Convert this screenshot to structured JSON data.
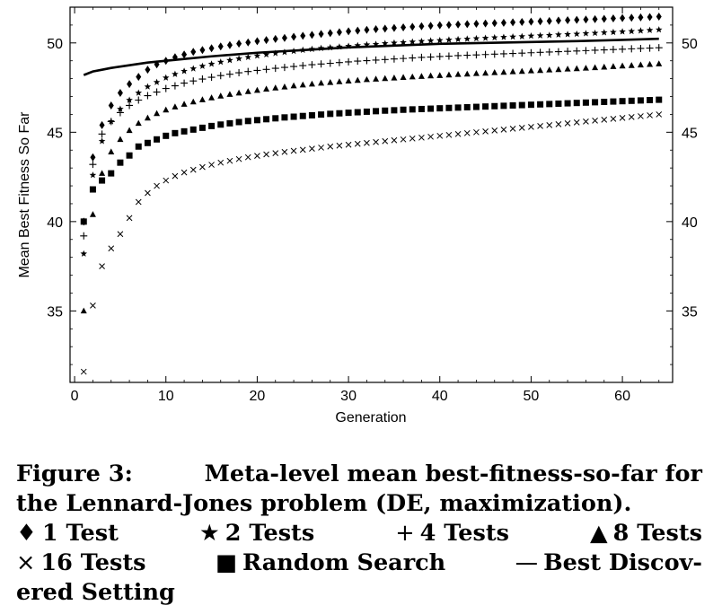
{
  "chart_data": {
    "type": "scatter",
    "title": "",
    "xlabel": "Generation",
    "ylabel": "Mean Best Fitness So Far",
    "xlim": [
      -0.5,
      65.5
    ],
    "ylim": [
      31,
      52
    ],
    "x_ticks": [
      0,
      10,
      20,
      30,
      40,
      50,
      60
    ],
    "y_ticks": [
      35,
      40,
      45,
      50
    ],
    "grid": false,
    "legend": "below",
    "series": [
      {
        "name": "1 Test",
        "marker": "diamond",
        "x": [
          1,
          2,
          3,
          4,
          5,
          6,
          7,
          8,
          9,
          10,
          11,
          12,
          13,
          14,
          15,
          16,
          17,
          18,
          19,
          20,
          21,
          22,
          23,
          24,
          25,
          26,
          27,
          28,
          29,
          30,
          31,
          32,
          33,
          34,
          35,
          36,
          37,
          38,
          39,
          40,
          41,
          42,
          43,
          44,
          45,
          46,
          47,
          48,
          49,
          50,
          51,
          52,
          53,
          54,
          55,
          56,
          57,
          58,
          59,
          60,
          61,
          62,
          63,
          64
        ],
        "y": [
          40.0,
          43.6,
          45.4,
          46.5,
          47.2,
          47.7,
          48.1,
          48.5,
          48.8,
          49.0,
          49.2,
          49.35,
          49.5,
          49.6,
          49.7,
          49.8,
          49.88,
          49.96,
          50.03,
          50.1,
          50.16,
          50.22,
          50.28,
          50.34,
          50.4,
          50.45,
          50.5,
          50.55,
          50.6,
          50.65,
          50.69,
          50.73,
          50.77,
          50.8,
          50.84,
          50.87,
          50.9,
          50.93,
          50.96,
          50.99,
          51.01,
          51.03,
          51.05,
          51.07,
          51.09,
          51.11,
          51.13,
          51.15,
          51.17,
          51.19,
          51.21,
          51.23,
          51.25,
          51.27,
          51.29,
          51.31,
          51.33,
          51.35,
          51.37,
          51.39,
          51.41,
          51.43,
          51.45,
          51.47
        ]
      },
      {
        "name": "2 Tests",
        "marker": "star",
        "x": [
          1,
          2,
          3,
          4,
          5,
          6,
          7,
          8,
          9,
          10,
          11,
          12,
          13,
          14,
          15,
          16,
          17,
          18,
          19,
          20,
          21,
          22,
          23,
          24,
          25,
          26,
          27,
          28,
          29,
          30,
          31,
          32,
          33,
          34,
          35,
          36,
          37,
          38,
          39,
          40,
          41,
          42,
          43,
          44,
          45,
          46,
          47,
          48,
          49,
          50,
          51,
          52,
          53,
          54,
          55,
          56,
          57,
          58,
          59,
          60,
          61,
          62,
          63,
          64
        ],
        "y": [
          38.2,
          42.6,
          44.5,
          45.6,
          46.3,
          46.8,
          47.2,
          47.55,
          47.8,
          48.05,
          48.25,
          48.42,
          48.56,
          48.7,
          48.82,
          48.93,
          49.03,
          49.12,
          49.2,
          49.28,
          49.35,
          49.42,
          49.48,
          49.54,
          49.6,
          49.65,
          49.7,
          49.74,
          49.78,
          49.82,
          49.86,
          49.9,
          49.93,
          49.97,
          50.0,
          50.03,
          50.06,
          50.09,
          50.12,
          50.14,
          50.17,
          50.2,
          50.22,
          50.25,
          50.27,
          50.3,
          50.32,
          50.34,
          50.36,
          50.39,
          50.41,
          50.43,
          50.46,
          50.48,
          50.5,
          50.53,
          50.55,
          50.58,
          50.6,
          50.63,
          50.65,
          50.68,
          50.71,
          50.74
        ]
      },
      {
        "name": "4 Tests",
        "marker": "plus",
        "x": [
          1,
          2,
          3,
          4,
          5,
          6,
          7,
          8,
          9,
          10,
          11,
          12,
          13,
          14,
          15,
          16,
          17,
          18,
          19,
          20,
          21,
          22,
          23,
          24,
          25,
          26,
          27,
          28,
          29,
          30,
          31,
          32,
          33,
          34,
          35,
          36,
          37,
          38,
          39,
          40,
          41,
          42,
          43,
          44,
          45,
          46,
          47,
          48,
          49,
          50,
          51,
          52,
          53,
          54,
          55,
          56,
          57,
          58,
          59,
          60,
          61,
          62,
          63,
          64
        ],
        "y": [
          39.2,
          43.2,
          44.9,
          45.6,
          46.1,
          46.5,
          46.8,
          47.05,
          47.25,
          47.45,
          47.6,
          47.75,
          47.87,
          47.98,
          48.08,
          48.17,
          48.25,
          48.33,
          48.4,
          48.46,
          48.52,
          48.58,
          48.63,
          48.68,
          48.73,
          48.78,
          48.82,
          48.86,
          48.9,
          48.94,
          48.98,
          49.01,
          49.04,
          49.07,
          49.1,
          49.13,
          49.16,
          49.19,
          49.21,
          49.24,
          49.26,
          49.29,
          49.31,
          49.33,
          49.35,
          49.37,
          49.39,
          49.41,
          49.43,
          49.45,
          49.47,
          49.49,
          49.51,
          49.53,
          49.55,
          49.57,
          49.59,
          49.61,
          49.63,
          49.65,
          49.67,
          49.69,
          49.71,
          49.73
        ]
      },
      {
        "name": "8 Tests",
        "marker": "triangle",
        "x": [
          1,
          2,
          3,
          4,
          5,
          6,
          7,
          8,
          9,
          10,
          11,
          12,
          13,
          14,
          15,
          16,
          17,
          18,
          19,
          20,
          21,
          22,
          23,
          24,
          25,
          26,
          27,
          28,
          29,
          30,
          31,
          32,
          33,
          34,
          35,
          36,
          37,
          38,
          39,
          40,
          41,
          42,
          43,
          44,
          45,
          46,
          47,
          48,
          49,
          50,
          51,
          52,
          53,
          54,
          55,
          56,
          57,
          58,
          59,
          60,
          61,
          62,
          63,
          64
        ],
        "y": [
          35.0,
          40.4,
          42.7,
          43.9,
          44.6,
          45.1,
          45.5,
          45.8,
          46.05,
          46.25,
          46.42,
          46.57,
          46.7,
          46.82,
          46.93,
          47.03,
          47.12,
          47.2,
          47.28,
          47.35,
          47.42,
          47.48,
          47.54,
          47.6,
          47.65,
          47.7,
          47.75,
          47.79,
          47.83,
          47.87,
          47.91,
          47.95,
          47.98,
          48.01,
          48.04,
          48.07,
          48.1,
          48.13,
          48.16,
          48.18,
          48.21,
          48.24,
          48.26,
          48.29,
          48.31,
          48.34,
          48.36,
          48.39,
          48.41,
          48.44,
          48.46,
          48.49,
          48.51,
          48.54,
          48.56,
          48.59,
          48.62,
          48.65,
          48.68,
          48.71,
          48.74,
          48.77,
          48.8,
          48.83
        ]
      },
      {
        "name": "16 Tests",
        "marker": "x",
        "x": [
          1,
          2,
          3,
          4,
          5,
          6,
          7,
          8,
          9,
          10,
          11,
          12,
          13,
          14,
          15,
          16,
          17,
          18,
          19,
          20,
          21,
          22,
          23,
          24,
          25,
          26,
          27,
          28,
          29,
          30,
          31,
          32,
          33,
          34,
          35,
          36,
          37,
          38,
          39,
          40,
          41,
          42,
          43,
          44,
          45,
          46,
          47,
          48,
          49,
          50,
          51,
          52,
          53,
          54,
          55,
          56,
          57,
          58,
          59,
          60,
          61,
          62,
          63,
          64
        ],
        "y": [
          31.6,
          35.3,
          37.5,
          38.5,
          39.3,
          40.2,
          41.1,
          41.6,
          42.0,
          42.3,
          42.55,
          42.75,
          42.9,
          43.05,
          43.18,
          43.3,
          43.4,
          43.5,
          43.6,
          43.68,
          43.76,
          43.83,
          43.9,
          43.96,
          44.02,
          44.08,
          44.14,
          44.2,
          44.25,
          44.3,
          44.35,
          44.4,
          44.45,
          44.5,
          44.55,
          44.6,
          44.65,
          44.7,
          44.75,
          44.8,
          44.85,
          44.9,
          44.95,
          45.0,
          45.05,
          45.1,
          45.15,
          45.2,
          45.25,
          45.3,
          45.35,
          45.4,
          45.45,
          45.5,
          45.55,
          45.6,
          45.65,
          45.7,
          45.75,
          45.8,
          45.85,
          45.9,
          45.95,
          46.0
        ]
      },
      {
        "name": "Random Search",
        "marker": "square",
        "x": [
          1,
          2,
          3,
          4,
          5,
          6,
          7,
          8,
          9,
          10,
          11,
          12,
          13,
          14,
          15,
          16,
          17,
          18,
          19,
          20,
          21,
          22,
          23,
          24,
          25,
          26,
          27,
          28,
          29,
          30,
          31,
          32,
          33,
          34,
          35,
          36,
          37,
          38,
          39,
          40,
          41,
          42,
          43,
          44,
          45,
          46,
          47,
          48,
          49,
          50,
          51,
          52,
          53,
          54,
          55,
          56,
          57,
          58,
          59,
          60,
          61,
          62,
          63,
          64
        ],
        "y": [
          40.0,
          41.8,
          42.3,
          42.7,
          43.3,
          43.7,
          44.2,
          44.4,
          44.6,
          44.8,
          44.95,
          45.05,
          45.15,
          45.25,
          45.35,
          45.43,
          45.5,
          45.57,
          45.63,
          45.68,
          45.73,
          45.78,
          45.83,
          45.87,
          45.91,
          45.95,
          45.99,
          46.03,
          46.06,
          46.09,
          46.12,
          46.15,
          46.18,
          46.21,
          46.23,
          46.26,
          46.28,
          46.3,
          46.32,
          46.34,
          46.36,
          46.38,
          46.4,
          46.42,
          46.44,
          46.46,
          46.48,
          46.5,
          46.52,
          46.54,
          46.56,
          46.58,
          46.6,
          46.62,
          46.64,
          46.66,
          46.68,
          46.7,
          46.72,
          46.74,
          46.76,
          46.78,
          46.8,
          46.82
        ]
      },
      {
        "name": "Best Discovered Setting",
        "marker": "line",
        "x": [
          1,
          2,
          3,
          4,
          6,
          8,
          10,
          12,
          15,
          20,
          25,
          30,
          35,
          40,
          45,
          50,
          55,
          60,
          64
        ],
        "y": [
          48.2,
          48.4,
          48.5,
          48.6,
          48.75,
          48.9,
          49.0,
          49.1,
          49.25,
          49.45,
          49.6,
          49.75,
          49.85,
          49.95,
          50.0,
          50.05,
          50.1,
          50.17,
          50.23
        ]
      }
    ]
  },
  "caption": {
    "figure_label": "Figure 3:",
    "line1_rest": "Meta-level mean best-fitness-so-far for",
    "line2": "the Lennard-Jones problem (DE, maximization).",
    "legend_items": [
      {
        "symbol": "♦",
        "text": "1 Test"
      },
      {
        "symbol": "★",
        "text": "2 Tests"
      },
      {
        "symbol": "+",
        "text": "4 Tests"
      },
      {
        "symbol": "▲",
        "text": "8 Tests"
      },
      {
        "symbol": "×",
        "text": "16 Tests"
      },
      {
        "symbol": "■",
        "text": "Random Search"
      },
      {
        "symbol": "—",
        "text": "Best Discov-"
      }
    ],
    "last_line": "ered Setting"
  }
}
